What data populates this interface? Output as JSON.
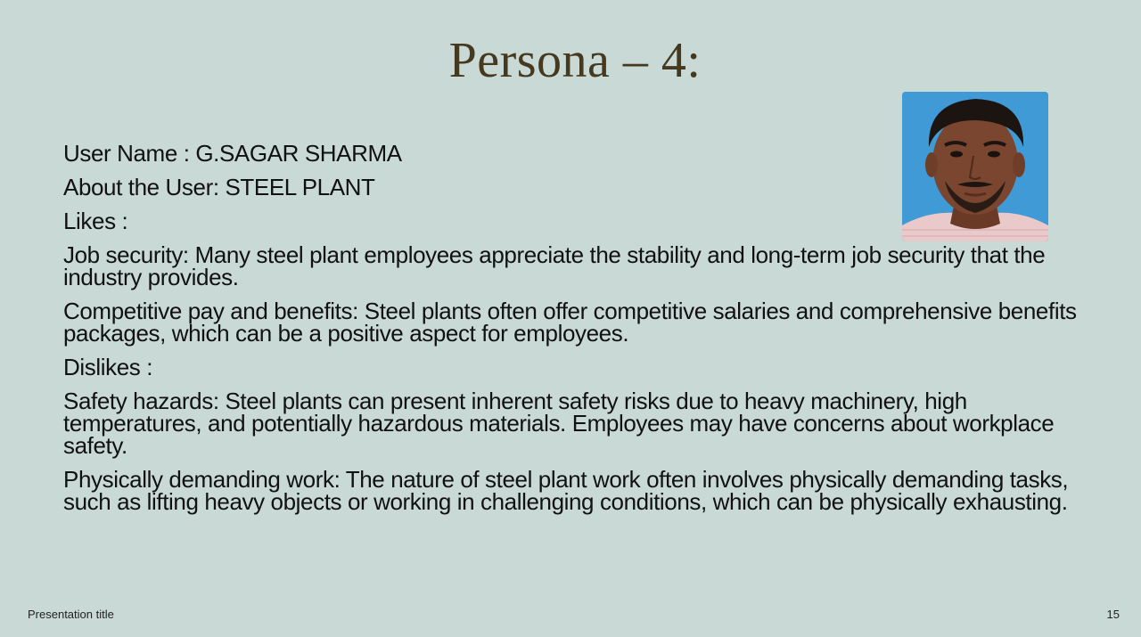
{
  "slide": {
    "title": "Persona – 4:",
    "user_name_line": "User Name : G.SAGAR SHARMA",
    "about_line": "About the User: STEEL PLANT",
    "likes_heading": "Likes :",
    "likes": [
      "Job security: Many steel plant employees appreciate the stability and long-term job security that the industry provides.",
      "Competitive pay and benefits: Steel plants often offer competitive salaries and comprehensive benefits packages, which can be a positive aspect for employees."
    ],
    "dislikes_heading": "Dislikes :",
    "dislikes": [
      "Safety hazards: Steel plants can present inherent safety risks due to heavy machinery, high temperatures, and potentially hazardous materials. Employees may have concerns about workplace safety.",
      "Physically demanding work: The nature of steel plant work often involves physically demanding tasks, such as lifting heavy objects or working in challenging conditions, which can be physically exhausting."
    ]
  },
  "footer": {
    "presentation_title": "Presentation title",
    "page_number": "15"
  },
  "colors": {
    "background": "#c9d9d6",
    "title": "#45391f",
    "photo_background": "#3f9ad6"
  }
}
